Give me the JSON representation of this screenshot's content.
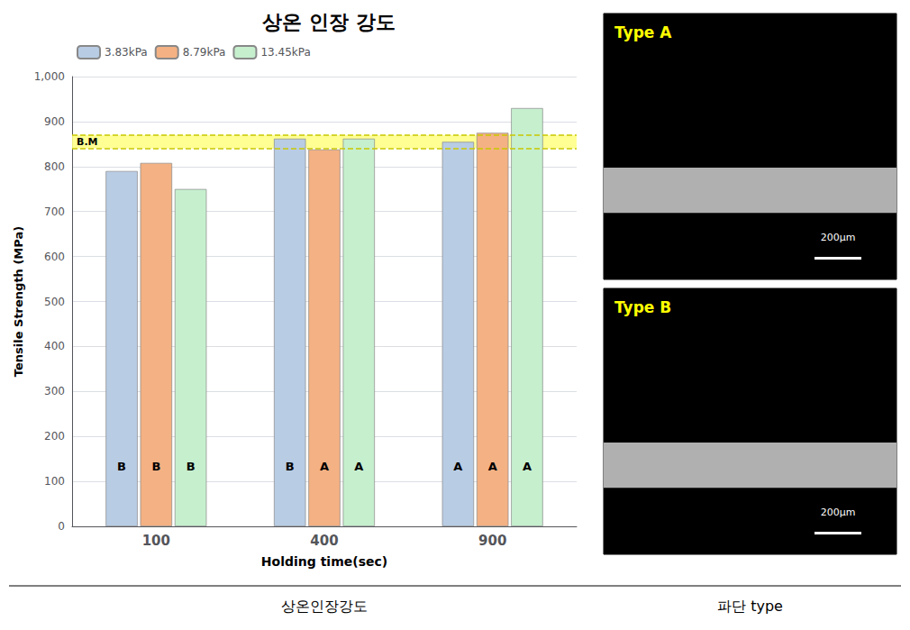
{
  "chart_data": {
    "type": "bar",
    "title": "상온 인장 강도",
    "x_label": "Holding time(sec)",
    "y_label": "Tensile Strength (MPa)",
    "categories": [
      "100",
      "400",
      "900"
    ],
    "series": [
      {
        "name": "3.83kPa",
        "color": "#b8cce4",
        "values": [
          790,
          862,
          855
        ],
        "bar_texts": [
          "B",
          "B",
          "A"
        ]
      },
      {
        "name": "8.79kPa",
        "color": "#f4b183",
        "values": [
          808,
          838,
          875
        ],
        "bar_texts": [
          "B",
          "A",
          "A"
        ]
      },
      {
        "name": "13.45kPa",
        "color": "#c6efce",
        "values": [
          750,
          862,
          930
        ],
        "bar_texts": [
          "B",
          "A",
          "A"
        ]
      }
    ],
    "reference_band": {
      "low": 840,
      "high": 870,
      "label": "B.M",
      "color": "#FFFF88"
    },
    "ylim": [
      0,
      1000
    ],
    "yticks": [
      0,
      100,
      200,
      300,
      400,
      500,
      600,
      700,
      800,
      900,
      1000
    ],
    "legend": "upper left",
    "panels": [
      {
        "label": "Type A",
        "scale_bar": "200μm"
      },
      {
        "label": "Type B",
        "scale_bar": "200μm"
      }
    ],
    "captions": [
      "상온인장강도",
      "파단 type"
    ]
  }
}
